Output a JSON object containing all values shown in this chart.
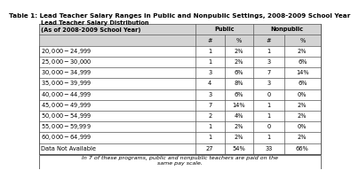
{
  "title": "Table 1: Lead Teacher Salary Ranges in Public and Nonpublic Settings, 2008-2009 School Year",
  "rows": [
    [
      "Lead Teacher Salary Distribution\n(As of 2008-2009 School Year)",
      "Public",
      "",
      "Nonpublic",
      ""
    ],
    [
      "",
      "#",
      "%",
      "#",
      "%"
    ],
    [
      "$20,000-$24,999",
      "1",
      "2%",
      "1",
      "2%"
    ],
    [
      "$25,000-$30,000",
      "1",
      "2%",
      "3",
      "6%"
    ],
    [
      "$30,000-$34,999",
      "3",
      "6%",
      "7",
      "14%"
    ],
    [
      "$35,000-$39,999",
      "4",
      "8%",
      "3",
      "6%"
    ],
    [
      "$40,000-$44,999",
      "3",
      "6%",
      "0",
      "0%"
    ],
    [
      "$45,000-$49,999",
      "7",
      "14%",
      "1",
      "2%"
    ],
    [
      "$50,000-$54,999",
      "2",
      "4%",
      "1",
      "2%"
    ],
    [
      "$55,000-$59,999",
      "1",
      "2%",
      "0",
      "0%"
    ],
    [
      "$60,000-$64,999",
      "1",
      "2%",
      "1",
      "2%"
    ],
    [
      "Data Not Available",
      "27",
      "54%",
      "33",
      "66%"
    ]
  ],
  "footnote_line1": "In 7 of these programs, public and nonpublic teachers are paid on the",
  "footnote_line2": "same pay scale.",
  "bg_color": "#ffffff",
  "header_bg": "#d3d3d3",
  "border_color": "#555555",
  "title_fontsize": 5.2,
  "table_fontsize": 4.8,
  "footnote_fontsize": 4.5
}
